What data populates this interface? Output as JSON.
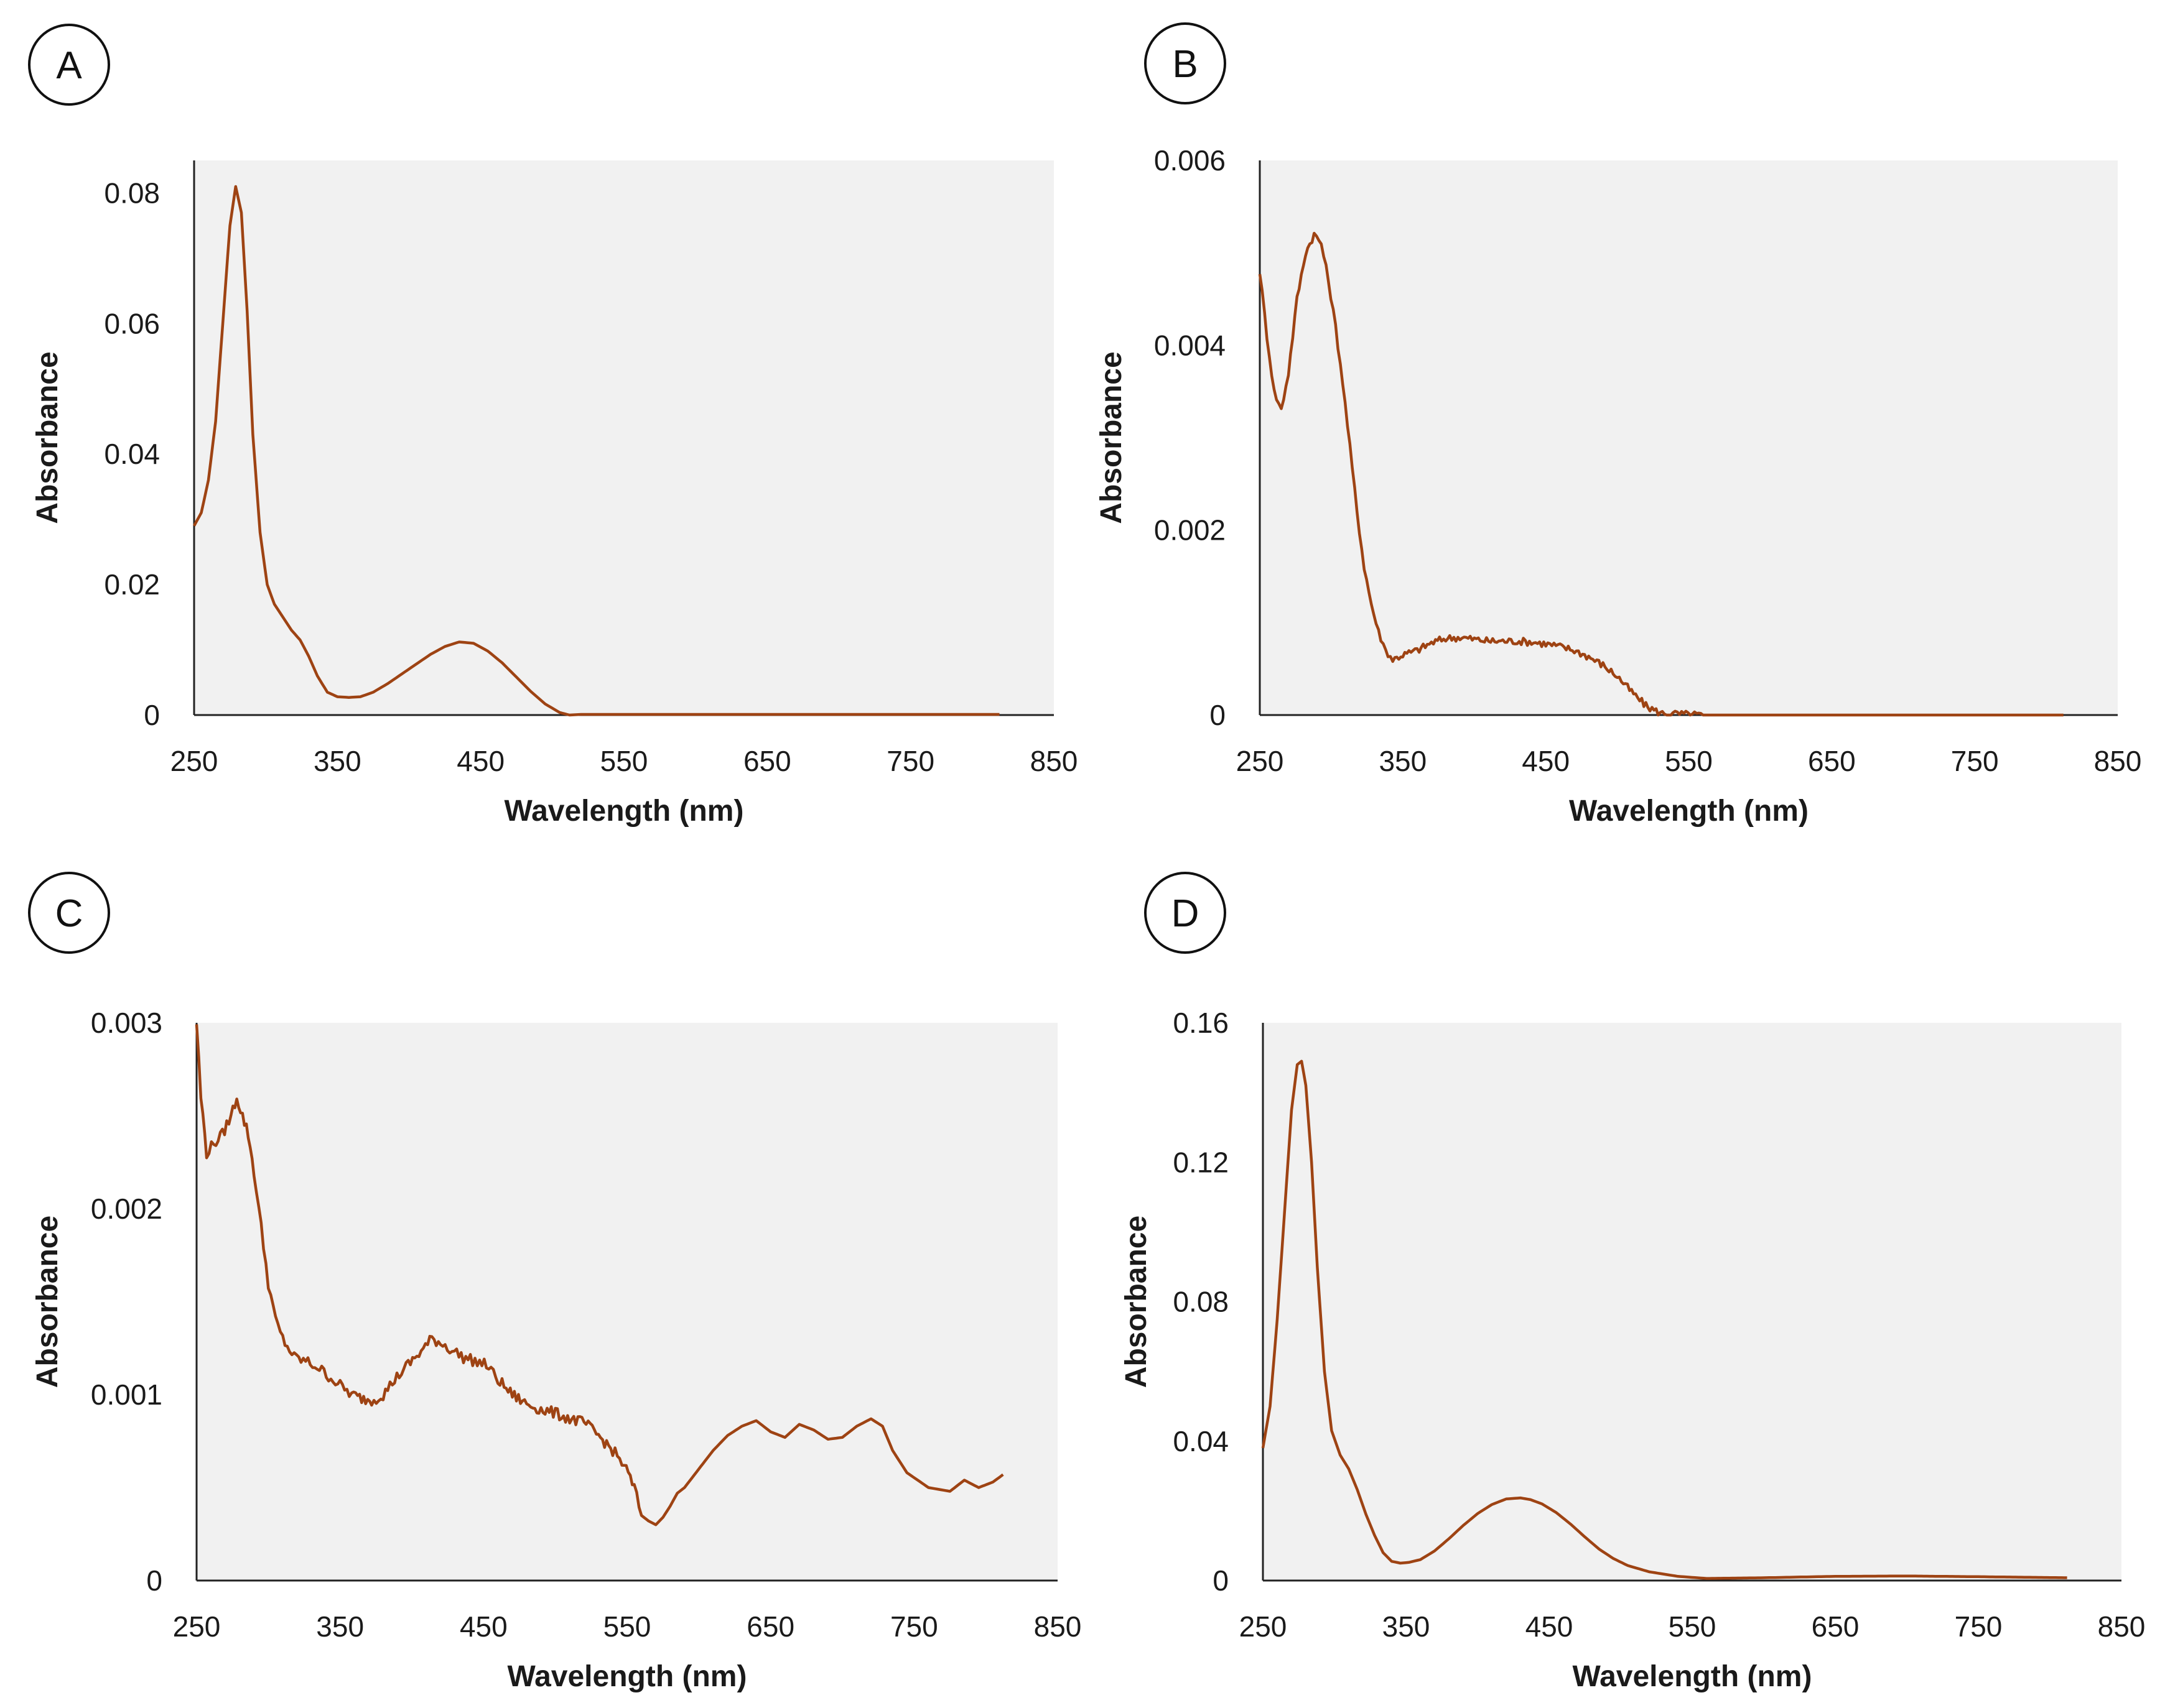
{
  "figure": {
    "line_color": "#9e4313",
    "plot_bg": "#f1f1f1",
    "axis_color": "#222222"
  },
  "chart_data": [
    {
      "panel": "A",
      "type": "line",
      "xlabel": "Wavelength (nm)",
      "ylabel": "Absorbance",
      "xlim": [
        250,
        850
      ],
      "ylim": [
        0,
        0.085
      ],
      "xticks": [
        250,
        350,
        450,
        550,
        650,
        750,
        850
      ],
      "xtick_labels": [
        "250",
        "350",
        "450",
        "550",
        "650",
        "750",
        "850"
      ],
      "yticks": [
        0,
        0.02,
        0.04,
        0.06,
        0.08
      ],
      "ytick_labels": [
        "0",
        "0.02",
        "0.04",
        "0.06",
        "0.08"
      ],
      "noise": 0,
      "series": [
        {
          "name": "A",
          "x": [
            250,
            255,
            260,
            265,
            270,
            275,
            279,
            283,
            287,
            291,
            296,
            301,
            306,
            312,
            318,
            324,
            330,
            336,
            343,
            350,
            358,
            366,
            375,
            385,
            395,
            405,
            415,
            425,
            435,
            445,
            455,
            465,
            475,
            485,
            495,
            505,
            512,
            520,
            540,
            600,
            700,
            812
          ],
          "y": [
            0.029,
            0.031,
            0.036,
            0.045,
            0.06,
            0.075,
            0.081,
            0.077,
            0.062,
            0.043,
            0.028,
            0.02,
            0.017,
            0.015,
            0.013,
            0.0115,
            0.009,
            0.006,
            0.0035,
            0.0028,
            0.0027,
            0.0028,
            0.0035,
            0.0048,
            0.0063,
            0.0078,
            0.0093,
            0.0105,
            0.0112,
            0.011,
            0.0098,
            0.008,
            0.0058,
            0.0036,
            0.0017,
            0.0004,
            0.0,
            0.0001,
            0.0001,
            0.0001,
            0.0001,
            0.0001
          ]
        }
      ]
    },
    {
      "panel": "B",
      "type": "line",
      "xlabel": "Wavelength (nm)",
      "ylabel": "Absorbance",
      "xlim": [
        250,
        850
      ],
      "ylim": [
        0,
        0.006
      ],
      "xticks": [
        250,
        350,
        450,
        550,
        650,
        750,
        850
      ],
      "xtick_labels": [
        "250",
        "350",
        "450",
        "550",
        "650",
        "750",
        "850"
      ],
      "yticks": [
        0,
        0.002,
        0.004,
        0.006
      ],
      "ytick_labels": [
        "0",
        "0.002",
        "0.004",
        "0.006"
      ],
      "noise": 4e-05,
      "series": [
        {
          "name": "B",
          "x": [
            250,
            255,
            260,
            265,
            270,
            276,
            282,
            288,
            293,
            298,
            303,
            308,
            313,
            318,
            323,
            328,
            333,
            338,
            343,
            350,
            360,
            370,
            380,
            390,
            400,
            410,
            420,
            430,
            440,
            450,
            460,
            470,
            480,
            490,
            500,
            510,
            520,
            530,
            560,
            600,
            700,
            812
          ],
          "y": [
            0.0048,
            0.0041,
            0.0035,
            0.0033,
            0.0037,
            0.0045,
            0.005,
            0.0052,
            0.0051,
            0.0047,
            0.0042,
            0.0036,
            0.0029,
            0.0022,
            0.0016,
            0.0012,
            0.0009,
            0.0007,
            0.0006,
            0.00065,
            0.0007,
            0.00078,
            0.00083,
            0.00084,
            0.00082,
            0.0008,
            0.0008,
            0.0008,
            0.00079,
            0.00077,
            0.00074,
            0.0007,
            0.00063,
            0.00054,
            0.00042,
            0.00025,
            0.0001,
            2e-05,
            0.0,
            0.0,
            0.0,
            0.0
          ]
        }
      ]
    },
    {
      "panel": "C",
      "type": "line",
      "xlabel": "Wavelength (nm)",
      "ylabel": "Absorbance",
      "xlim": [
        250,
        850
      ],
      "ylim": [
        0,
        0.003
      ],
      "xticks": [
        250,
        350,
        450,
        550,
        650,
        750,
        850
      ],
      "xtick_labels": [
        "250",
        "350",
        "450",
        "550",
        "650",
        "750",
        "850"
      ],
      "yticks": [
        0,
        0.001,
        0.002,
        0.003
      ],
      "ytick_labels": [
        "0",
        "0.001",
        "0.002",
        "0.003"
      ],
      "noise": 3e-05,
      "series": [
        {
          "name": "C",
          "x": [
            250,
            253,
            257,
            262,
            268,
            274,
            278,
            282,
            286,
            290,
            295,
            300,
            305,
            310,
            318,
            326,
            334,
            342,
            350,
            358,
            365,
            372,
            380,
            388,
            396,
            405,
            414,
            420,
            428,
            436,
            444,
            452,
            460,
            470,
            480,
            490,
            500,
            510,
            520,
            530,
            540,
            548,
            555,
            560,
            565,
            570,
            575,
            580,
            585,
            590,
            595,
            600,
            610,
            620,
            630,
            640,
            650,
            660,
            670,
            680,
            690,
            700,
            710,
            720,
            728,
            735,
            745,
            760,
            775,
            785,
            795,
            805,
            812
          ],
          "y": [
            0.003,
            0.0026,
            0.0023,
            0.00235,
            0.0024,
            0.0025,
            0.0026,
            0.0025,
            0.0024,
            0.0022,
            0.0019,
            0.0016,
            0.0014,
            0.0013,
            0.0012,
            0.00118,
            0.00115,
            0.0011,
            0.00105,
            0.001,
            0.00098,
            0.00097,
            0.001,
            0.00108,
            0.00115,
            0.00122,
            0.0013,
            0.00128,
            0.00124,
            0.0012,
            0.00118,
            0.00116,
            0.00108,
            0.001,
            0.00095,
            0.00092,
            0.0009,
            0.00087,
            0.00085,
            0.00078,
            0.0007,
            0.00062,
            0.0005,
            0.00035,
            0.00032,
            0.0003,
            0.00034,
            0.0004,
            0.00047,
            0.0005,
            0.00055,
            0.0006,
            0.0007,
            0.00078,
            0.00083,
            0.00086,
            0.0008,
            0.00077,
            0.00084,
            0.00081,
            0.00076,
            0.00077,
            0.00083,
            0.00087,
            0.00083,
            0.0007,
            0.00058,
            0.0005,
            0.00048,
            0.00054,
            0.0005,
            0.00053,
            0.00057
          ]
        }
      ]
    },
    {
      "panel": "D",
      "type": "line",
      "xlabel": "Wavelength (nm)",
      "ylabel": "Absorbance",
      "xlim": [
        250,
        850
      ],
      "ylim": [
        0,
        0.16
      ],
      "xticks": [
        250,
        350,
        450,
        550,
        650,
        750,
        850
      ],
      "xtick_labels": [
        "250",
        "350",
        "450",
        "550",
        "650",
        "750",
        "850"
      ],
      "yticks": [
        0,
        0.04,
        0.08,
        0.12,
        0.16
      ],
      "ytick_labels": [
        "0",
        "0.04",
        "0.08",
        "0.12",
        "0.16"
      ],
      "noise": 0,
      "series": [
        {
          "name": "D",
          "x": [
            250,
            255,
            260,
            265,
            270,
            274,
            277,
            280,
            284,
            288,
            293,
            298,
            304,
            310,
            316,
            322,
            328,
            334,
            340,
            346,
            352,
            360,
            370,
            380,
            390,
            400,
            410,
            420,
            430,
            437,
            445,
            455,
            465,
            475,
            485,
            495,
            505,
            520,
            540,
            560,
            600,
            650,
            700,
            750,
            812
          ],
          "y": [
            0.038,
            0.05,
            0.075,
            0.105,
            0.135,
            0.148,
            0.149,
            0.142,
            0.12,
            0.09,
            0.06,
            0.043,
            0.036,
            0.032,
            0.026,
            0.019,
            0.013,
            0.008,
            0.0055,
            0.005,
            0.0052,
            0.006,
            0.0085,
            0.012,
            0.0158,
            0.0192,
            0.0218,
            0.0234,
            0.0237,
            0.0232,
            0.022,
            0.0195,
            0.0162,
            0.0125,
            0.009,
            0.0063,
            0.0043,
            0.0025,
            0.0012,
            0.0006,
            0.0008,
            0.0012,
            0.0013,
            0.0011,
            0.0008
          ]
        }
      ]
    }
  ]
}
